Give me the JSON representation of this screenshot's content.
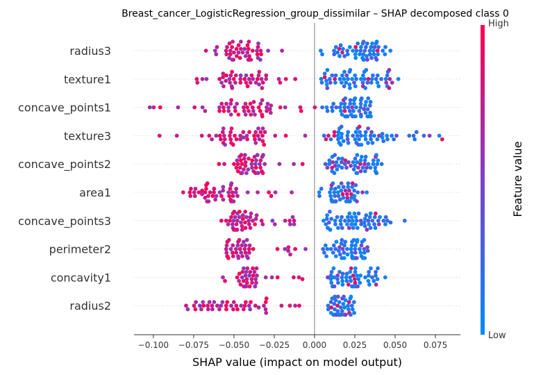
{
  "chart_data": {
    "type": "scatter",
    "subtype": "shap-beeswarm",
    "title": "Breast_cancer_LogisticRegression_group_dissimilar – SHAP decomposed class 0",
    "xlabel": "SHAP value (impact on model output)",
    "xlim": [
      -0.112,
      0.0905
    ],
    "x_ticks": [
      -0.1,
      -0.075,
      -0.05,
      -0.025,
      0.0,
      0.025,
      0.05,
      0.075
    ],
    "x_tick_labels": [
      "−0.100",
      "−0.075",
      "−0.050",
      "−0.025",
      "0.000",
      "0.025",
      "0.050",
      "0.075"
    ],
    "features": [
      "radius3",
      "texture1",
      "concave_points1",
      "texture3",
      "concave_points2",
      "area1",
      "concave_points3",
      "perimeter2",
      "concavity1",
      "radius2"
    ],
    "colorbar": {
      "label": "Feature value",
      "high_label": "High",
      "low_label": "Low"
    },
    "colors": {
      "low": "#008bfb",
      "high": "#ff0052",
      "zero_line": "#999999",
      "grid": "#cccccc"
    },
    "series": [
      {
        "feature": "radius3",
        "negative_range": [
          -0.07,
          -0.005
        ],
        "negative_core": [
          -0.055,
          -0.033
        ],
        "negative_count": 45,
        "positive_range": [
          0.002,
          0.048
        ],
        "positive_core": [
          0.012,
          0.04
        ],
        "positive_count": 55
      },
      {
        "feature": "texture1",
        "negative_range": [
          -0.076,
          -0.01
        ],
        "negative_core": [
          -0.058,
          -0.03
        ],
        "negative_count": 45,
        "positive_range": [
          0.0,
          0.054
        ],
        "positive_core": [
          0.004,
          0.048
        ],
        "positive_count": 60
      },
      {
        "feature": "concave_points1",
        "negative_range": [
          -0.103,
          -0.005
        ],
        "negative_core": [
          -0.06,
          -0.025
        ],
        "negative_count": 50,
        "positive_range": [
          0.0,
          0.04
        ],
        "positive_core": [
          0.015,
          0.035
        ],
        "positive_count": 55
      },
      {
        "feature": "texture3",
        "negative_range": [
          -0.103,
          -0.005
        ],
        "negative_core": [
          -0.06,
          -0.03
        ],
        "negative_count": 45,
        "positive_range": [
          0.0,
          0.081
        ],
        "positive_core": [
          0.005,
          0.045
        ],
        "positive_count": 60
      },
      {
        "feature": "concave_points2",
        "negative_range": [
          -0.065,
          -0.005
        ],
        "negative_core": [
          -0.05,
          -0.03
        ],
        "negative_count": 45,
        "positive_range": [
          0.002,
          0.047
        ],
        "positive_core": [
          0.01,
          0.04
        ],
        "positive_count": 55
      },
      {
        "feature": "area1",
        "negative_range": [
          -0.085,
          -0.005
        ],
        "negative_core": [
          -0.08,
          -0.045
        ],
        "negative_count": 50,
        "positive_range": [
          0.002,
          0.033
        ],
        "positive_core": [
          0.01,
          0.03
        ],
        "positive_count": 55
      },
      {
        "feature": "concave_points3",
        "negative_range": [
          -0.06,
          -0.01
        ],
        "negative_core": [
          -0.055,
          -0.035
        ],
        "negative_count": 50,
        "positive_range": [
          0.002,
          0.056
        ],
        "positive_core": [
          0.005,
          0.045
        ],
        "positive_count": 60
      },
      {
        "feature": "perimeter2",
        "negative_range": [
          -0.065,
          -0.005
        ],
        "negative_core": [
          -0.055,
          -0.04
        ],
        "negative_count": 40,
        "positive_range": [
          0.005,
          0.034
        ],
        "positive_core": [
          0.01,
          0.033
        ],
        "positive_count": 55
      },
      {
        "feature": "concavity1",
        "negative_range": [
          -0.058,
          -0.005
        ],
        "negative_core": [
          -0.048,
          -0.035
        ],
        "negative_count": 40,
        "positive_range": [
          0.005,
          0.044
        ],
        "positive_core": [
          0.01,
          0.042
        ],
        "positive_count": 55
      },
      {
        "feature": "radius2",
        "negative_range": [
          -0.08,
          -0.005
        ],
        "negative_core": [
          -0.075,
          -0.03
        ],
        "negative_count": 45,
        "positive_range": [
          0.005,
          0.025
        ],
        "positive_core": [
          0.012,
          0.024
        ],
        "positive_count": 55
      }
    ]
  }
}
